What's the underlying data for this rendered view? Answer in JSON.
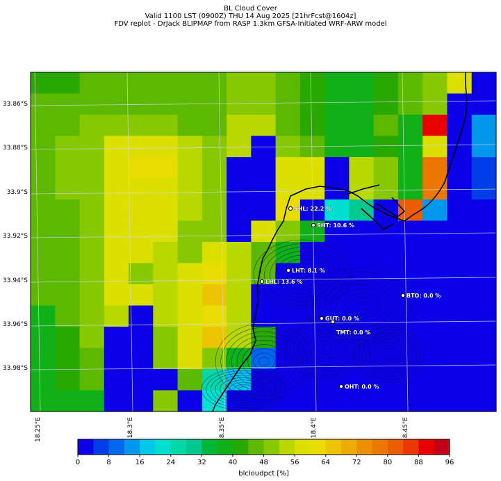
{
  "header": {
    "line1": "BL Cloud Cover",
    "line2": "Valid 1100 LST (0900Z) THU 14 Aug 2025 [21hrFcst@1604z]",
    "line3": "FDV replot - DrJack BLIPMAP from RASP 1.3km GFSA-Initiated WRF-ARW model"
  },
  "chart_data": {
    "type": "heatmap",
    "title": "BL Cloud Cover",
    "y_ticks": [
      "33.86°S",
      "33.88°S",
      "33.9°S",
      "33.92°S",
      "33.94°S",
      "33.96°S",
      "33.98°S"
    ],
    "x_ticks": [
      "18.25°E",
      "18.3°E",
      "18.35°E",
      "18.4°E",
      "18.45°E"
    ],
    "colorbar": {
      "label": "blcloudpct [%]",
      "ticks": [
        "0",
        "8",
        "16",
        "24",
        "32",
        "40",
        "48",
        "56",
        "64",
        "72",
        "80",
        "88",
        "96"
      ],
      "levels": [
        0,
        4,
        8,
        12,
        16,
        20,
        24,
        28,
        32,
        36,
        40,
        44,
        48,
        52,
        56,
        60,
        64,
        68,
        72,
        76,
        80,
        84,
        88,
        92,
        96
      ],
      "colors": [
        "#0b00e8",
        "#003fe8",
        "#0068ec",
        "#0098ec",
        "#00c8e8",
        "#00e0d0",
        "#00d8a8",
        "#00c890",
        "#00b838",
        "#10b018",
        "#28a800",
        "#5cb800",
        "#88c800",
        "#b8d800",
        "#dce000",
        "#e8dc00",
        "#ecc400",
        "#ecac00",
        "#ec9000",
        "#ec7800",
        "#ec5c00",
        "#ec3800",
        "#e80000",
        "#c40018"
      ]
    },
    "grid_values": [
      [
        42,
        40,
        44,
        44,
        44,
        44,
        44,
        44,
        48,
        48,
        46,
        40,
        38,
        38,
        40,
        46,
        48,
        58,
        0
      ],
      [
        44,
        44,
        44,
        44,
        44,
        44,
        44,
        44,
        48,
        48,
        46,
        40,
        38,
        38,
        40,
        46,
        48,
        0,
        0
      ],
      [
        44,
        44,
        50,
        50,
        50,
        50,
        46,
        46,
        52,
        52,
        46,
        40,
        36,
        36,
        44,
        36,
        90,
        0,
        12
      ],
      [
        44,
        50,
        50,
        56,
        56,
        56,
        52,
        50,
        52,
        2,
        50,
        44,
        36,
        36,
        40,
        36,
        56,
        0,
        12
      ],
      [
        44,
        50,
        50,
        56,
        60,
        60,
        52,
        50,
        2,
        2,
        56,
        56,
        0,
        54,
        50,
        36,
        78,
        0,
        6
      ],
      [
        44,
        50,
        50,
        56,
        56,
        56,
        52,
        50,
        2,
        2,
        56,
        56,
        0,
        54,
        50,
        36,
        78,
        0,
        6
      ],
      [
        44,
        46,
        50,
        56,
        56,
        56,
        52,
        50,
        2,
        2,
        60,
        2,
        22,
        28,
        0,
        80,
        12,
        0,
        0
      ],
      [
        44,
        46,
        50,
        56,
        56,
        56,
        50,
        48,
        2,
        58,
        48,
        36,
        0,
        0,
        0,
        0,
        0,
        0,
        0
      ],
      [
        44,
        46,
        50,
        56,
        56,
        52,
        50,
        58,
        52,
        44,
        36,
        0,
        0,
        0,
        0,
        0,
        0,
        0,
        0
      ],
      [
        44,
        46,
        50,
        56,
        50,
        52,
        56,
        62,
        52,
        44,
        0,
        0,
        0,
        0,
        0,
        0,
        0,
        0,
        0
      ],
      [
        44,
        46,
        50,
        56,
        56,
        52,
        56,
        64,
        52,
        0,
        0,
        0,
        0,
        0,
        0,
        0,
        0,
        0,
        0
      ],
      [
        36,
        46,
        50,
        52,
        2,
        52,
        56,
        62,
        52,
        0,
        0,
        0,
        0,
        0,
        0,
        0,
        0,
        0,
        0
      ],
      [
        36,
        40,
        50,
        2,
        2,
        50,
        56,
        66,
        52,
        40,
        0,
        0,
        0,
        0,
        0,
        0,
        0,
        0,
        0
      ],
      [
        36,
        40,
        46,
        2,
        2,
        50,
        56,
        50,
        36,
        10,
        0,
        0,
        0,
        0,
        0,
        0,
        0,
        0,
        0
      ],
      [
        36,
        40,
        46,
        2,
        2,
        2,
        46,
        26,
        18,
        0,
        0,
        0,
        0,
        0,
        0,
        0,
        0,
        0,
        0
      ],
      [
        36,
        36,
        36,
        2,
        2,
        50,
        2,
        20,
        0,
        0,
        0,
        0,
        0,
        0,
        0,
        0,
        0,
        0,
        0
      ]
    ],
    "stations": [
      {
        "label": "SHL: 22.2 %"
      },
      {
        "label": "SHT: 10.6 %"
      },
      {
        "label": "LHT: 8.1 %"
      },
      {
        "label": "LHL: 13.6 %"
      },
      {
        "label": "BTO: 0.0 %"
      },
      {
        "label": "GUT: 0.0 %"
      },
      {
        "label": "TMT: 0.0 %"
      },
      {
        "label": "OHT: 0.0 %"
      }
    ]
  }
}
